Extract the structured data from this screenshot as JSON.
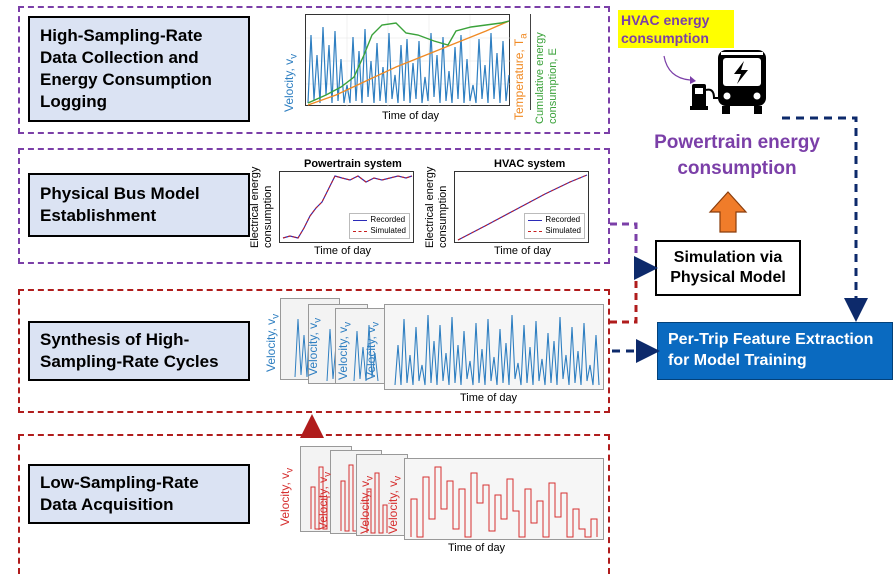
{
  "stages": {
    "stage1": "High-Sampling-Rate Data Collection and Energy Consumption Logging",
    "stage2": "Physical Bus Model Establishment",
    "stage3": "Synthesis of High-Sampling-Rate Cycles",
    "stage4": "Low-Sampling-Rate Data Acquisition"
  },
  "labels": {
    "velocity": "Velocity, v",
    "velocity_sub": "v",
    "time_of_day": "Time of day",
    "temperature": "Temperature, T",
    "temperature_sub": "a",
    "cumulative_line1": "Cumulative energy",
    "cumulative_line2": "consumption, E",
    "electrical_line1": "Electrical energy",
    "electrical_line2": "consumption",
    "powertrain_system": "Powertrain system",
    "hvac_system": "HVAC system",
    "recorded": "Recorded",
    "simulated": "Simulated"
  },
  "right": {
    "hvac_energy": "HVAC energy consumption",
    "powertrain_energy": "Powertrain energy consumption",
    "simulation": "Simulation via Physical Model",
    "feature_extraction": "Per-Trip Feature Extraction for Model Training"
  },
  "colors": {
    "purple": "#7b3fa8",
    "red": "#b01c1c",
    "blue_box": "#0a6ac0",
    "stage_fill": "#dbe3f3",
    "velocity_blue": "#2f7fc1",
    "temperature_orange": "#f08a24",
    "energy_green": "#3aa23a",
    "highlight_yellow": "#ffff00",
    "arrow_orange": "#f07c2a",
    "arrow_navy": "#0d2a6b"
  },
  "icons": [
    "bus-charging-icon"
  ]
}
